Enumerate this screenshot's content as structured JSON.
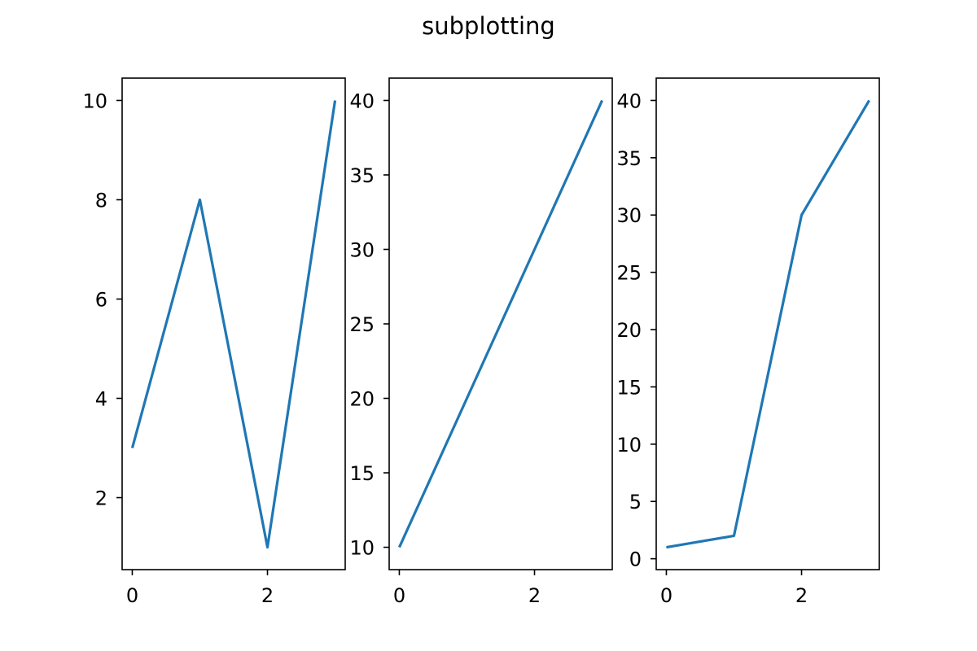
{
  "title": "subplotting",
  "colors": {
    "line": "#1f77b4",
    "axes": "#000000",
    "background": "#ffffff"
  },
  "chart_data": [
    {
      "type": "line",
      "x": [
        0,
        1,
        2,
        3
      ],
      "y": [
        3,
        8,
        1,
        10
      ],
      "xlim": [
        -0.15,
        3.15
      ],
      "ylim": [
        0.55,
        10.45
      ],
      "xticks": [
        0,
        2
      ],
      "yticks": [
        2,
        4,
        6,
        8,
        10
      ],
      "grid": false,
      "legend": null,
      "xlabel": "",
      "ylabel": ""
    },
    {
      "type": "line",
      "x": [
        0,
        1,
        2,
        3
      ],
      "y": [
        10,
        20,
        30,
        40
      ],
      "xlim": [
        -0.15,
        3.15
      ],
      "ylim": [
        8.5,
        41.5
      ],
      "xticks": [
        0,
        2
      ],
      "yticks": [
        10,
        15,
        20,
        25,
        30,
        35,
        40
      ],
      "grid": false,
      "legend": null,
      "xlabel": "",
      "ylabel": ""
    },
    {
      "type": "line",
      "x": [
        0,
        1,
        2,
        3
      ],
      "y": [
        1,
        2,
        30,
        40
      ],
      "xlim": [
        -0.15,
        3.15
      ],
      "ylim": [
        -0.95,
        41.95
      ],
      "xticks": [
        0,
        2
      ],
      "yticks": [
        0,
        5,
        10,
        15,
        20,
        25,
        30,
        35,
        40
      ],
      "grid": false,
      "legend": null,
      "xlabel": "",
      "ylabel": ""
    }
  ]
}
